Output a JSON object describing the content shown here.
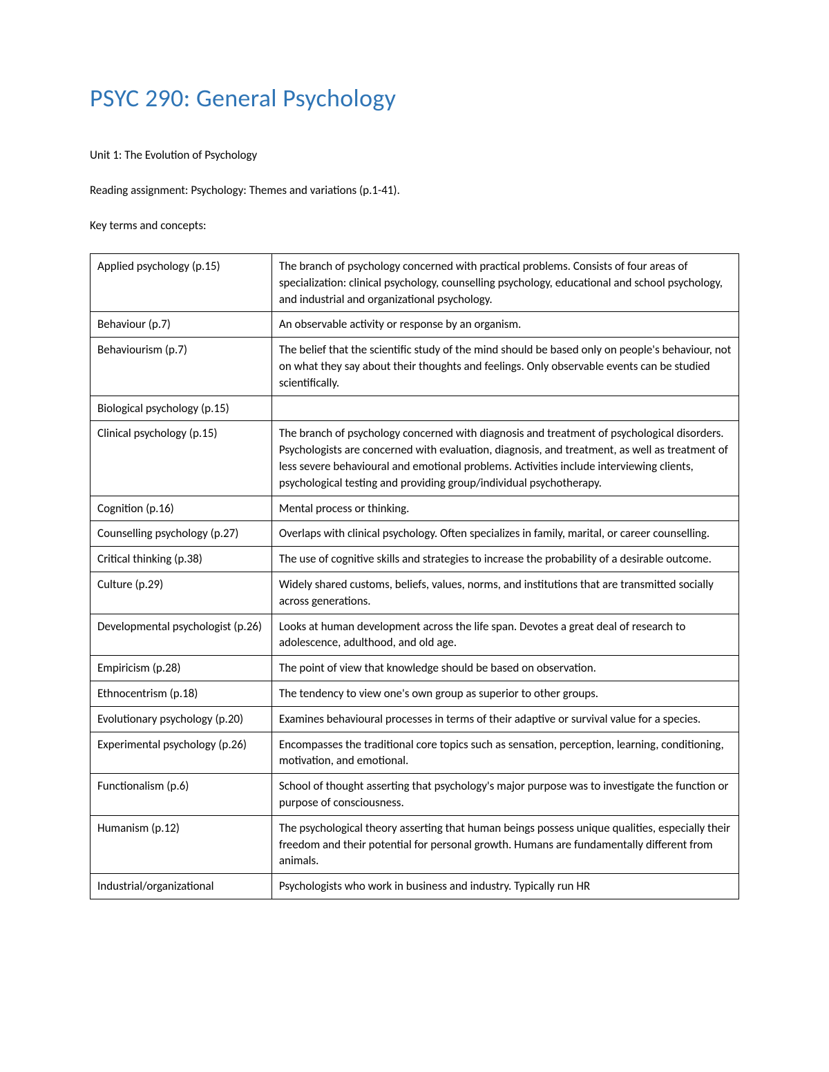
{
  "title": "PSYC 290: General Psychology",
  "unit_heading": "Unit 1: The Evolution of Psychology",
  "reading_assignment": "Reading assignment: Psychology: Themes and variations (p.1-41).",
  "key_terms_heading": "Key terms and concepts:",
  "colors": {
    "title_color": "#2e74b5",
    "text_color": "#000000",
    "border_color": "#000000",
    "background_color": "#ffffff"
  },
  "typography": {
    "title_fontsize": 36,
    "body_fontsize": 17,
    "font_family": "Calibri"
  },
  "table": {
    "type": "table",
    "column_widths_percent": [
      28,
      72
    ],
    "rows": [
      {
        "term": "Applied psychology (p.15)",
        "definition": "The branch of psychology concerned with practical problems. Consists of four areas of specialization: clinical psychology, counselling psychology, educational and school psychology, and industrial and organizational psychology."
      },
      {
        "term": "Behaviour (p.7)",
        "definition": "An observable activity or response by an organism."
      },
      {
        "term": "Behaviourism (p.7)",
        "definition": "The belief that the scientific study of the mind should be based only on people's behaviour, not on what they say about their thoughts and feelings. Only observable events can be studied scientifically."
      },
      {
        "term": "Biological psychology (p.15)",
        "definition": ""
      },
      {
        "term": "Clinical psychology (p.15)",
        "definition": "The branch of psychology concerned with diagnosis and treatment of psychological disorders. Psychologists are concerned with evaluation, diagnosis, and treatment, as well as treatment of less severe behavioural and emotional problems. Activities include interviewing clients, psychological testing and providing group/individual psychotherapy."
      },
      {
        "term": "Cognition (p.16)",
        "definition": "Mental process or thinking."
      },
      {
        "term": "Counselling psychology (p.27)",
        "definition": "Overlaps with clinical psychology. Often specializes in family, marital, or career counselling."
      },
      {
        "term": "Critical thinking (p.38)",
        "definition": "The use of cognitive skills and strategies to increase the probability of a desirable outcome."
      },
      {
        "term": "Culture (p.29)",
        "definition": "Widely shared customs, beliefs, values, norms, and institutions that are transmitted socially across generations."
      },
      {
        "term": "Developmental psychologist (p.26)",
        "definition": "Looks at human development across the life span. Devotes a great deal of research to adolescence, adulthood, and old age."
      },
      {
        "term": "Empiricism (p.28)",
        "definition": "The point of view that knowledge should be based on observation."
      },
      {
        "term": "Ethnocentrism (p.18)",
        "definition": "The tendency to view one's own group as superior to other groups."
      },
      {
        "term": "Evolutionary psychology (p.20)",
        "definition": "Examines behavioural processes in terms of their adaptive or survival value for a species."
      },
      {
        "term": "Experimental psychology (p.26)",
        "definition": "Encompasses the traditional core topics such as sensation, perception, learning, conditioning, motivation, and emotional."
      },
      {
        "term": "Functionalism (p.6)",
        "definition": "School of thought asserting that psychology's major purpose was to investigate the function or purpose of consciousness."
      },
      {
        "term": "Humanism (p.12)",
        "definition": "The psychological theory asserting that human beings possess unique qualities, especially their freedom and their potential for personal growth. Humans are fundamentally different from animals."
      },
      {
        "term": "Industrial/organizational",
        "definition": "Psychologists who work in business and industry. Typically run HR"
      }
    ]
  }
}
